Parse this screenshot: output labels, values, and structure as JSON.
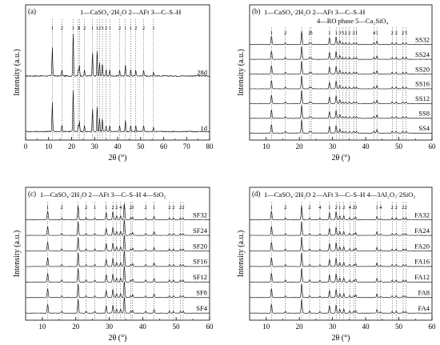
{
  "chart_data": [
    {
      "type": "line",
      "panel_label": "(a)",
      "legend_text": "1—CaSO₄·2H₂O   2—AFt   3—C–S–H",
      "xlabel": "2θ (°)",
      "ylabel": "Intensity (a.u.)",
      "xlim": [
        0,
        80
      ],
      "x_ticks": [
        0,
        10,
        20,
        30,
        40,
        50,
        60,
        70,
        80
      ],
      "series": [
        {
          "name": "28d"
        },
        {
          "name": "1d"
        }
      ],
      "phase_peaks": [
        {
          "phase": "1",
          "two_theta": 11.6
        },
        {
          "phase": "2",
          "two_theta": 15.8
        },
        {
          "phase": "1",
          "two_theta": 20.7
        },
        {
          "phase": "2",
          "two_theta": 22.9
        },
        {
          "phase": "1",
          "two_theta": 23.4
        },
        {
          "phase": "2",
          "two_theta": 25.6
        },
        {
          "phase": "1",
          "two_theta": 29.1
        },
        {
          "phase": "1",
          "two_theta": 31.1
        },
        {
          "phase": "2",
          "two_theta": 32.2
        },
        {
          "phase": "3",
          "two_theta": 33.4
        },
        {
          "phase": "2",
          "two_theta": 35.0
        },
        {
          "phase": "1",
          "two_theta": 36.6
        },
        {
          "phase": "2",
          "two_theta": 40.9
        },
        {
          "phase": "1",
          "two_theta": 43.4
        },
        {
          "phase": "1",
          "two_theta": 45.7
        },
        {
          "phase": "2",
          "two_theta": 47.9
        },
        {
          "phase": "2",
          "two_theta": 51.3
        },
        {
          "phase": "1",
          "two_theta": 55.6
        }
      ]
    },
    {
      "type": "line",
      "panel_label": "(b)",
      "legend_text": "1—CaSO₄·2H₂O   2—AFt   3—C–S–H",
      "legend_text_2": "4—RO phase  5—Ca₂SiO₄",
      "xlabel": "2θ (°)",
      "ylabel": "Intensity (a.u.)",
      "xlim": [
        5,
        60
      ],
      "x_ticks": [
        10,
        20,
        30,
        40,
        50,
        60
      ],
      "series": [
        {
          "name": "SS32"
        },
        {
          "name": "SS24"
        },
        {
          "name": "SS20"
        },
        {
          "name": "SS16"
        },
        {
          "name": "SS12"
        },
        {
          "name": "SS8"
        },
        {
          "name": "SS4"
        }
      ],
      "phase_peaks": [
        {
          "phase": "1",
          "two_theta": 11.6
        },
        {
          "phase": "2",
          "two_theta": 15.8
        },
        {
          "phase": "1",
          "two_theta": 20.7
        },
        {
          "phase": "2",
          "two_theta": 23.1
        },
        {
          "phase": "5",
          "two_theta": 23.6
        },
        {
          "phase": "1",
          "two_theta": 29.1
        },
        {
          "phase": "1",
          "two_theta": 31.1
        },
        {
          "phase": "3",
          "two_theta": 32.2
        },
        {
          "phase": "5",
          "two_theta": 33.1
        },
        {
          "phase": "2",
          "two_theta": 34.0
        },
        {
          "phase": "2",
          "two_theta": 35.1
        },
        {
          "phase": "2",
          "two_theta": 36.4
        },
        {
          "phase": "1",
          "two_theta": 37.2
        },
        {
          "phase": "4",
          "two_theta": 42.5
        },
        {
          "phase": "1",
          "two_theta": 43.4
        },
        {
          "phase": "2",
          "two_theta": 48.0
        },
        {
          "phase": "2",
          "two_theta": 49.2
        },
        {
          "phase": "2",
          "two_theta": 51.2
        },
        {
          "phase": "5",
          "two_theta": 52.2
        }
      ]
    },
    {
      "type": "line",
      "panel_label": "(c)",
      "legend_text": "1—CaSO₄·2H₂O   2—AFt   3—C–S–H   4—SiO₂",
      "xlabel": "2θ (°)",
      "ylabel": "Intensity (a.u.)",
      "xlim": [
        5,
        60
      ],
      "x_ticks": [
        10,
        20,
        30,
        40,
        50,
        60
      ],
      "series": [
        {
          "name": "SF32"
        },
        {
          "name": "SF24"
        },
        {
          "name": "SF20"
        },
        {
          "name": "SF16"
        },
        {
          "name": "SF12"
        },
        {
          "name": "SF8"
        },
        {
          "name": "SF4"
        }
      ],
      "phase_peaks": [
        {
          "phase": "1",
          "two_theta": 11.6
        },
        {
          "phase": "2",
          "two_theta": 15.8
        },
        {
          "phase": "1",
          "two_theta": 20.7
        },
        {
          "phase": "2",
          "two_theta": 23.1
        },
        {
          "phase": "1",
          "two_theta": 25.7
        },
        {
          "phase": "1",
          "two_theta": 29.1
        },
        {
          "phase": "2",
          "two_theta": 31.1
        },
        {
          "phase": "2",
          "two_theta": 32.2
        },
        {
          "phase": "4",
          "two_theta": 33.4
        },
        {
          "phase": "1",
          "two_theta": 34.5
        },
        {
          "phase": "2",
          "two_theta": 36.4
        },
        {
          "phase": "3",
          "two_theta": 37.0
        },
        {
          "phase": "2",
          "two_theta": 40.9
        },
        {
          "phase": "1",
          "two_theta": 43.4
        },
        {
          "phase": "2",
          "two_theta": 48.0
        },
        {
          "phase": "2",
          "two_theta": 49.2
        },
        {
          "phase": "2",
          "two_theta": 51.3
        },
        {
          "phase": "2",
          "two_theta": 52.1
        }
      ]
    },
    {
      "type": "line",
      "panel_label": "(d)",
      "legend_text": "1—CaSO₄·2H₂O   2—AFt   3—C–S–H   4—3Al₂O₃·2SiO₂",
      "xlabel": "2θ (°)",
      "ylabel": "Intensity (a.u.)",
      "xlim": [
        5,
        60
      ],
      "x_ticks": [
        10,
        20,
        30,
        40,
        50,
        60
      ],
      "series": [
        {
          "name": "FA32"
        },
        {
          "name": "FA24"
        },
        {
          "name": "FA20"
        },
        {
          "name": "FA16"
        },
        {
          "name": "FA12"
        },
        {
          "name": "FA8"
        },
        {
          "name": "FA4"
        }
      ],
      "phase_peaks": [
        {
          "phase": "1",
          "two_theta": 11.6
        },
        {
          "phase": "2",
          "two_theta": 15.8
        },
        {
          "phase": "1",
          "two_theta": 20.7
        },
        {
          "phase": "2",
          "two_theta": 23.1
        },
        {
          "phase": "4",
          "two_theta": 26.2
        },
        {
          "phase": "1",
          "two_theta": 29.1
        },
        {
          "phase": "2",
          "two_theta": 31.1
        },
        {
          "phase": "1",
          "two_theta": 32.2
        },
        {
          "phase": "2",
          "two_theta": 33.4
        },
        {
          "phase": "4",
          "two_theta": 35.2
        },
        {
          "phase": "2",
          "two_theta": 36.4
        },
        {
          "phase": "3",
          "two_theta": 37.0
        },
        {
          "phase": "1",
          "two_theta": 43.4
        },
        {
          "phase": "4",
          "two_theta": 44.5
        },
        {
          "phase": "2",
          "two_theta": 48.0
        },
        {
          "phase": "2",
          "two_theta": 49.2
        },
        {
          "phase": "2",
          "two_theta": 51.3
        },
        {
          "phase": "2",
          "two_theta": 52.1
        }
      ]
    }
  ]
}
